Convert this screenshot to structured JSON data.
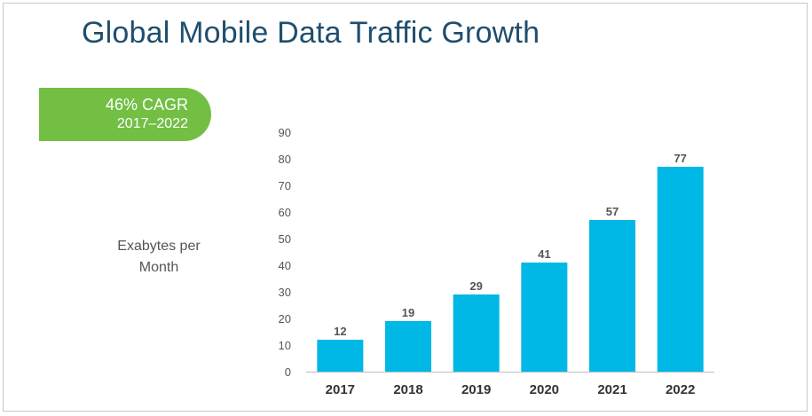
{
  "title": "Global Mobile Data Traffic Growth",
  "badge": {
    "line1": "46% CAGR",
    "line2": "2017–2022",
    "color": "#72bf44"
  },
  "colors": {
    "bar": "#00b8e6",
    "title": "#1f4e6e"
  },
  "chart_data": {
    "type": "bar",
    "title": "Global Mobile Data Traffic Growth",
    "ylabel": "Exabytes per Month",
    "xlabel": "",
    "categories": [
      "2017",
      "2018",
      "2019",
      "2020",
      "2021",
      "2022"
    ],
    "values": [
      12,
      19,
      29,
      41,
      57,
      77
    ],
    "data_labels": [
      "12",
      "19",
      "29",
      "41",
      "57",
      "77"
    ],
    "yticks": [
      0,
      10,
      20,
      30,
      40,
      50,
      60,
      70,
      80,
      90
    ],
    "ylim": [
      0,
      90
    ],
    "grid": false,
    "legend": "none"
  }
}
